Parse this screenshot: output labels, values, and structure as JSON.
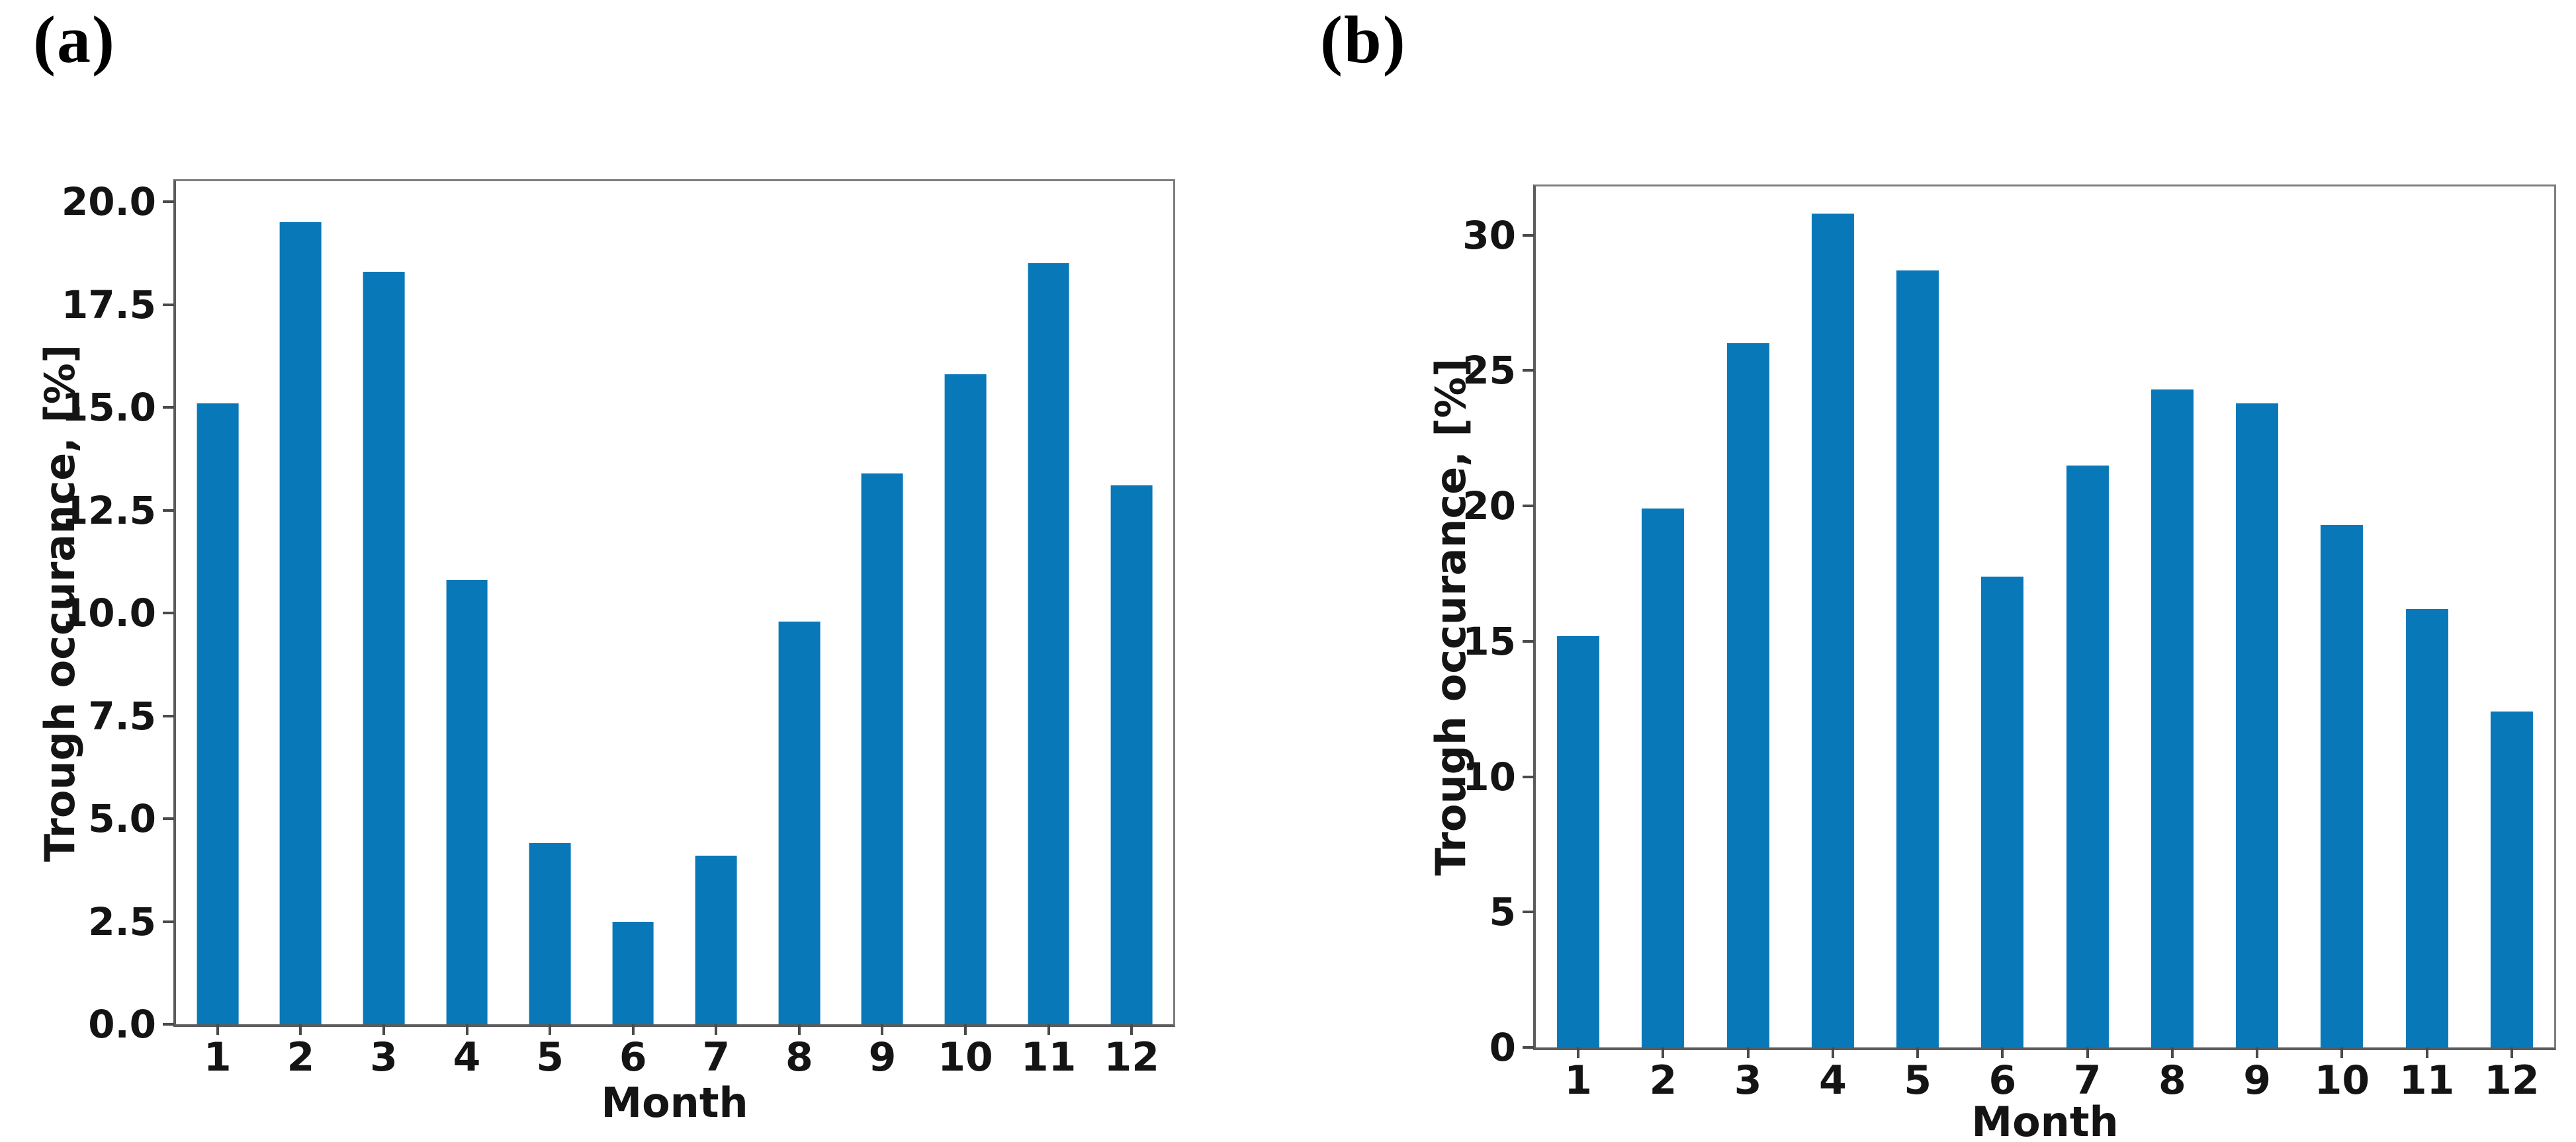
{
  "figure": {
    "background": "#ffffff",
    "bar_color": "#0878b8",
    "spine_color": "#6e6e6e",
    "text_color": "#141414"
  },
  "panels": [
    {
      "id": "a",
      "label": "(a)"
    },
    {
      "id": "b",
      "label": "(b)"
    }
  ],
  "chart_data": [
    {
      "type": "bar",
      "panel": "a",
      "title": "",
      "categories": [
        "1",
        "2",
        "3",
        "4",
        "5",
        "6",
        "7",
        "8",
        "9",
        "10",
        "11",
        "12"
      ],
      "values": [
        15.1,
        19.5,
        18.3,
        10.8,
        4.4,
        2.5,
        4.1,
        9.8,
        13.4,
        15.8,
        18.5,
        13.1
      ],
      "xlabel": "Month",
      "ylabel": "Trough occurance, [%]",
      "ylim": [
        0,
        20.5
      ],
      "yticks": [
        0.0,
        2.5,
        5.0,
        7.5,
        10.0,
        12.5,
        15.0,
        17.5,
        20.0
      ],
      "ytick_labels": [
        "0.0",
        "2.5",
        "5.0",
        "7.5",
        "10.0",
        "12.5",
        "15.0",
        "17.5",
        "20.0"
      ],
      "bar_color": "#0878b8",
      "bar_width_fraction": 0.5,
      "grid": false,
      "legend": null
    },
    {
      "type": "bar",
      "panel": "b",
      "title": "",
      "categories": [
        "1",
        "2",
        "3",
        "4",
        "5",
        "6",
        "7",
        "8",
        "9",
        "10",
        "11",
        "12"
      ],
      "values": [
        15.2,
        19.9,
        26.0,
        30.8,
        28.7,
        17.4,
        21.5,
        24.3,
        23.8,
        19.3,
        16.2,
        12.4
      ],
      "xlabel": "Month",
      "ylabel": "Trough occurance, [%]",
      "ylim": [
        0,
        31.8
      ],
      "yticks": [
        0,
        5,
        10,
        15,
        20,
        25,
        30
      ],
      "ytick_labels": [
        "0",
        "5",
        "10",
        "15",
        "20",
        "25",
        "30"
      ],
      "bar_color": "#0878b8",
      "bar_width_fraction": 0.5,
      "grid": false,
      "legend": null
    }
  ]
}
